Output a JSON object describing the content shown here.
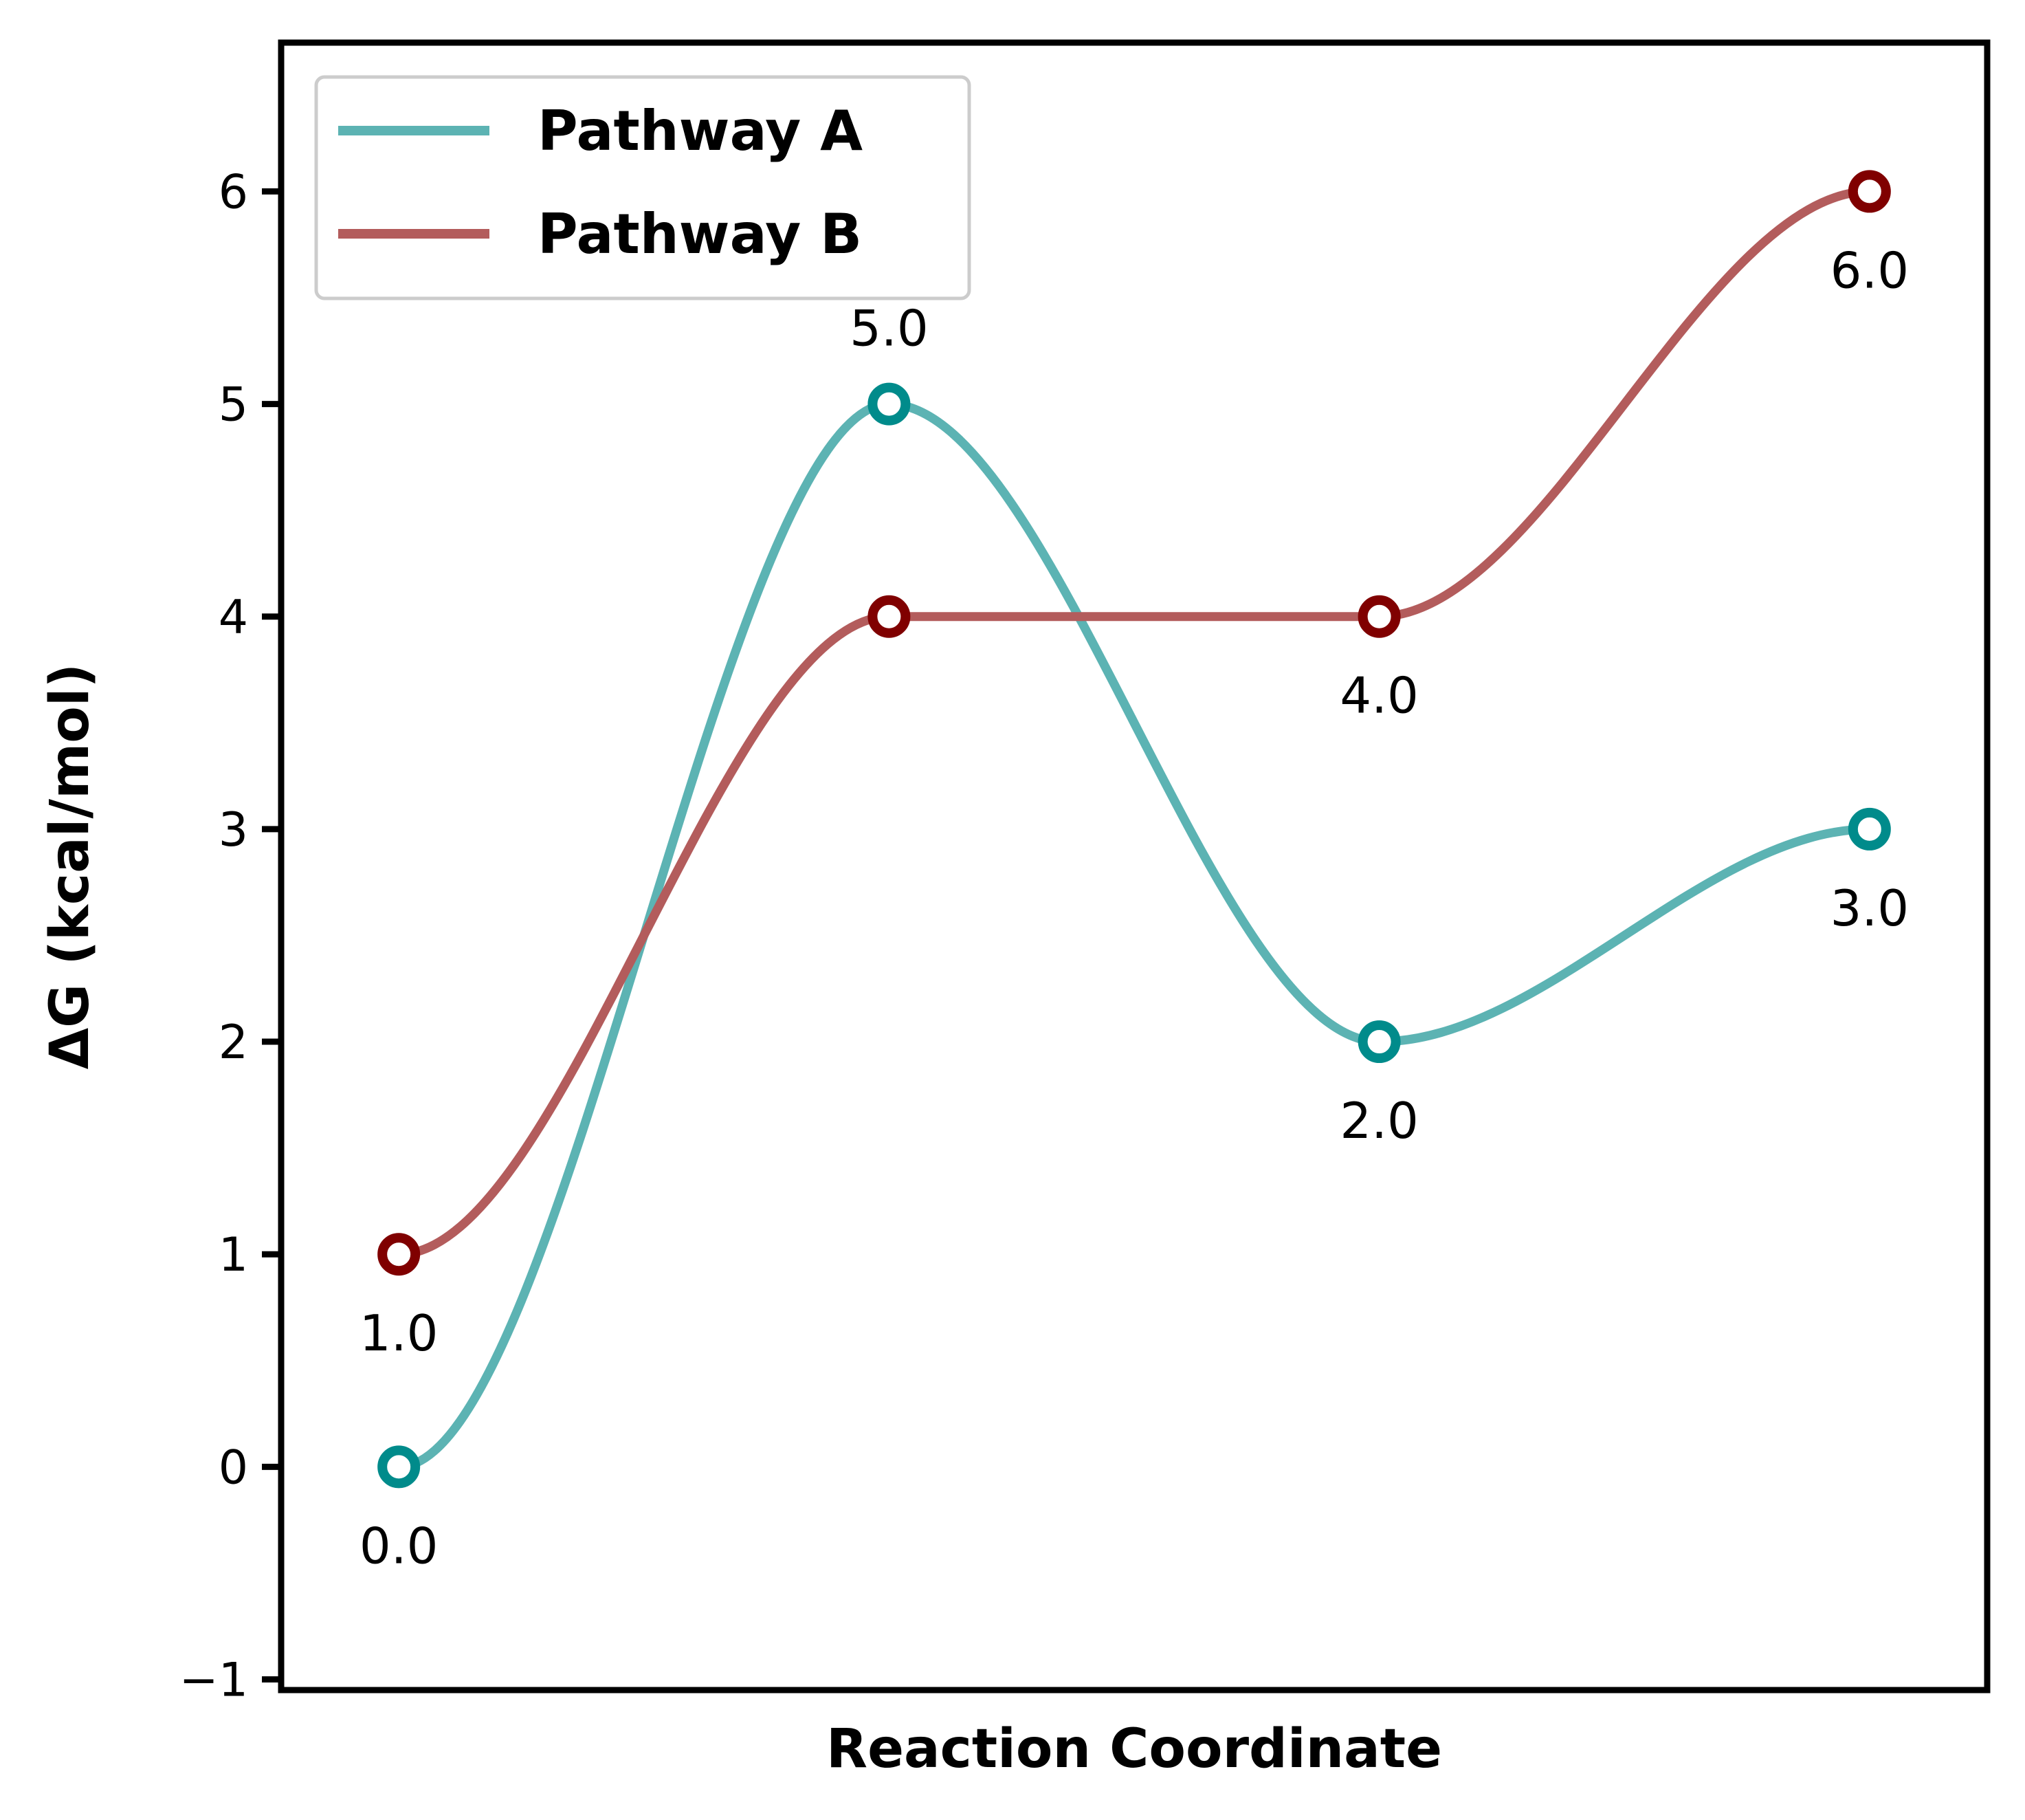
{
  "chart_data": {
    "type": "line",
    "title": "",
    "xlabel": "Reaction Coordinate",
    "ylabel": "ΔG (kcal/mol)",
    "x": [
      0,
      1,
      2,
      3
    ],
    "xlim": [
      -0.24,
      3.24
    ],
    "ylim": [
      -1.05,
      6.7
    ],
    "yticks": [
      -1,
      0,
      1,
      2,
      3,
      4,
      5,
      6
    ],
    "ytick_labels": [
      "−1",
      "0",
      "1",
      "2",
      "3",
      "4",
      "5",
      "6"
    ],
    "grid": false,
    "legend": {
      "placement": "top-left"
    },
    "series": [
      {
        "name": "Pathway A",
        "values": [
          0,
          5,
          2,
          3
        ],
        "value_labels": [
          "0.0",
          "5.0",
          "2.0",
          "3.0"
        ],
        "line_color": "#5cb3b3",
        "marker_color": "#008b8b"
      },
      {
        "name": "Pathway B",
        "values": [
          1,
          4,
          4,
          6
        ],
        "value_labels": [
          "1.0",
          "",
          "4.0",
          "6.0"
        ],
        "line_color": "#b35c5c",
        "marker_color": "#800000"
      }
    ]
  }
}
